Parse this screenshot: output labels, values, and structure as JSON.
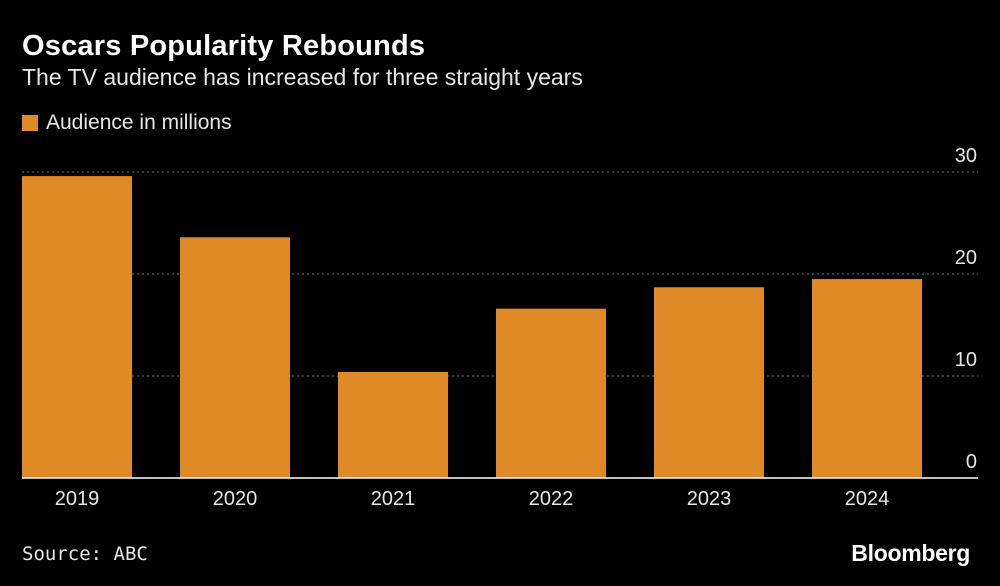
{
  "header": {
    "title": "Oscars Popularity Rebounds",
    "subtitle": "The TV audience has increased for three straight years"
  },
  "legend": {
    "label": "Audience in millions"
  },
  "footer": {
    "source": "Source: ABC",
    "brand": "Bloomberg"
  },
  "colors": {
    "background": "#000000",
    "bar": "#e08a27",
    "grid": "#777777",
    "axis": "#ffffff",
    "text": "#e6e6e6"
  },
  "chart_data": {
    "type": "bar",
    "title": "Oscars Popularity Rebounds",
    "subtitle": "The TV audience has increased for three straight years",
    "categories": [
      "2019",
      "2020",
      "2021",
      "2022",
      "2023",
      "2024"
    ],
    "series": [
      {
        "name": "Audience in millions",
        "values": [
          29.6,
          23.6,
          10.4,
          16.6,
          18.7,
          19.5
        ]
      }
    ],
    "ylim": [
      0,
      30
    ],
    "yticks": [
      0,
      10,
      20,
      30
    ],
    "xlabel": "",
    "ylabel": "",
    "grid": true,
    "y_axis_side": "right",
    "legend_position": "top-left"
  }
}
